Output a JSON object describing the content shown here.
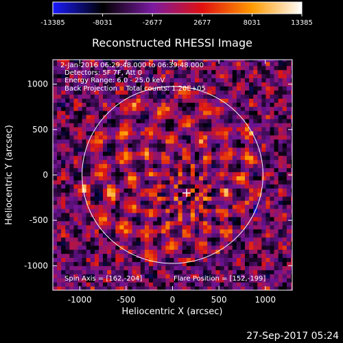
{
  "chart_data": {
    "type": "heatmap",
    "title": "Reconstructed RHESSI Image",
    "xlabel": "Heliocentric X (arcsec)",
    "ylabel": "Heliocentric Y (arcsec)",
    "xlim": [
      -1290,
      1290
    ],
    "ylim": [
      -1270,
      1270
    ],
    "x_ticks": [
      -1000,
      -500,
      0,
      500,
      1000
    ],
    "x_tick_labels": [
      "-1000",
      "-500",
      "0",
      "500",
      "1000"
    ],
    "y_ticks": [
      -1000,
      -500,
      0,
      500,
      1000
    ],
    "y_tick_labels": [
      "-1000",
      "-500",
      "0",
      "500",
      "1000"
    ],
    "colorbar": {
      "min": -13385,
      "max": 13385,
      "ticks": [
        -13385,
        -8031,
        -2677,
        2677,
        8031,
        13385
      ],
      "tick_labels": [
        "-13385",
        "-8031",
        "-2677",
        "2677",
        "8031",
        "13385"
      ],
      "colors": [
        "#1a1aff",
        "#000000",
        "#7a1aa0",
        "#e01010",
        "#ff9a00",
        "#ffffff"
      ]
    },
    "annotations": [
      "2-Jan-2016 06:29:48.000 to 06:39:48.000",
      "Detectors: 5F 7F, Att 0",
      "Energy Range: 6.0 - 25.0 keV",
      "Back Projection    Total counts: 1.20E+05"
    ],
    "spin_axis_label": "Spin Axis = [162,-204]",
    "flare_position_label": "Flare Position = [152,-199]",
    "flare_position": [
      152,
      -199
    ],
    "limb_radius": 975,
    "bright_source": [
      1000,
      -430
    ]
  },
  "footer": {
    "timestamp": "27-Sep-2017 05:24"
  }
}
